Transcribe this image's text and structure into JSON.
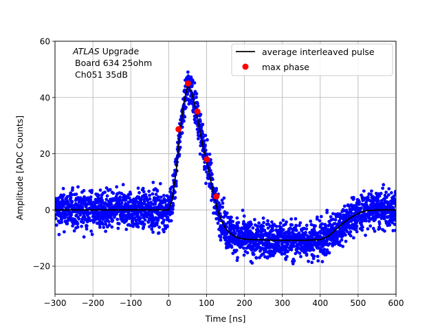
{
  "chart_data": {
    "type": "scatter",
    "title": "",
    "xlabel": "Time [ns]",
    "ylabel": "Amplitude [ADC Counts]",
    "xlim": [
      -300,
      600
    ],
    "ylim": [
      -30,
      60
    ],
    "xticks": [
      -300,
      -200,
      -100,
      0,
      100,
      200,
      300,
      400,
      500,
      600
    ],
    "yticks": [
      -20,
      0,
      20,
      40,
      60
    ],
    "grid": true,
    "legend_position": "top-right",
    "annotation": {
      "italic": "ATLAS",
      "line1_rest": " Upgrade",
      "line2": "Board 634 25ohm",
      "line3": "Ch051 35dB"
    },
    "series": [
      {
        "name": "",
        "kind": "noisy samples",
        "color": "#0000ff",
        "noise_spread_adc": 7.5,
        "sample_step_ns": 1
      },
      {
        "name": "average interleaved pulse",
        "kind": "line",
        "color": "#000000",
        "x": [
          -300,
          -100,
          0,
          10,
          20,
          30,
          40,
          50,
          60,
          70,
          80,
          90,
          100,
          110,
          120,
          130,
          140,
          150,
          160,
          175,
          190,
          210,
          240,
          280,
          320,
          360,
          400,
          420,
          440,
          460,
          480,
          500,
          520,
          550,
          580,
          600
        ],
        "y": [
          0,
          0,
          0,
          4,
          14,
          28,
          38,
          44.5,
          42,
          37,
          30,
          23,
          17.5,
          11,
          5,
          -0.5,
          -4,
          -6.5,
          -8,
          -9.5,
          -10.2,
          -10.5,
          -10.6,
          -10.8,
          -10.8,
          -10.8,
          -10.6,
          -9.5,
          -7.2,
          -4.8,
          -2.8,
          -1.2,
          -0.3,
          0,
          0,
          0
        ]
      },
      {
        "name": "max phase",
        "kind": "markers",
        "color": "#ff0000",
        "x": [
          26,
          51,
          76,
          101,
          126
        ],
        "y": [
          28.7,
          45,
          35,
          18,
          4.8
        ]
      }
    ]
  }
}
